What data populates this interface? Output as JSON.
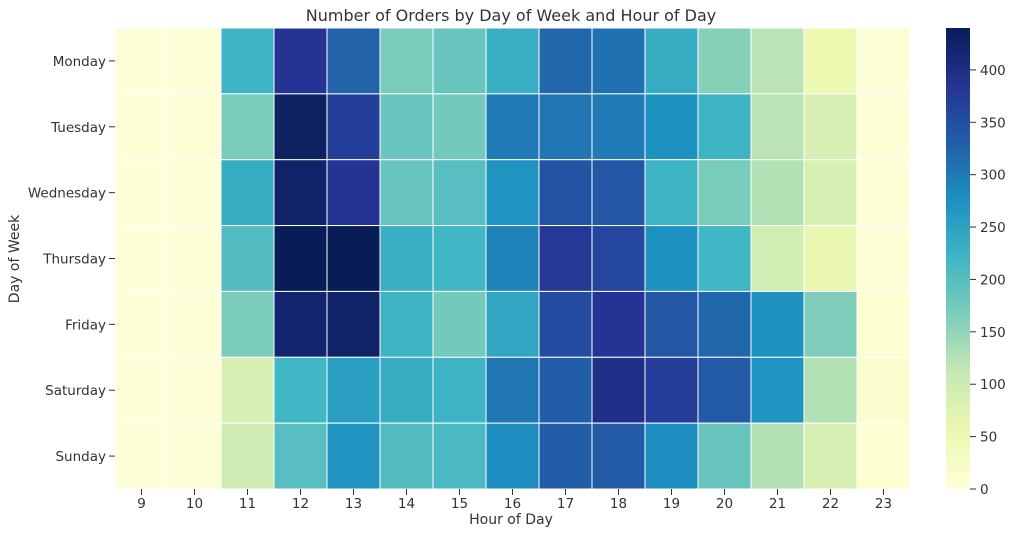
{
  "chart_data": {
    "type": "heatmap",
    "title": "Number of Orders by Day of Week and Hour of Day",
    "xlabel": "Hour of Day",
    "ylabel": "Day of Week",
    "x": [
      "9",
      "10",
      "11",
      "12",
      "13",
      "14",
      "15",
      "16",
      "17",
      "18",
      "19",
      "20",
      "21",
      "22",
      "23"
    ],
    "y": [
      "Monday",
      "Tuesday",
      "Wednesday",
      "Thursday",
      "Friday",
      "Saturday",
      "Sunday"
    ],
    "values": [
      [
        3,
        5,
        225,
        385,
        325,
        170,
        185,
        230,
        320,
        310,
        235,
        160,
        120,
        55,
        5
      ],
      [
        3,
        5,
        170,
        430,
        370,
        185,
        175,
        300,
        305,
        300,
        275,
        225,
        120,
        85,
        5
      ],
      [
        3,
        5,
        235,
        425,
        385,
        185,
        200,
        270,
        345,
        340,
        225,
        170,
        125,
        85,
        5
      ],
      [
        3,
        5,
        205,
        440,
        445,
        230,
        220,
        290,
        380,
        360,
        275,
        220,
        95,
        60,
        5
      ],
      [
        3,
        5,
        170,
        420,
        425,
        225,
        175,
        245,
        355,
        385,
        340,
        320,
        275,
        165,
        10
      ],
      [
        3,
        5,
        85,
        220,
        255,
        235,
        225,
        305,
        330,
        395,
        375,
        335,
        270,
        125,
        15
      ],
      [
        3,
        5,
        100,
        200,
        270,
        205,
        210,
        280,
        330,
        335,
        280,
        185,
        125,
        85,
        10
      ]
    ],
    "colorbar": {
      "min": 0,
      "max": 440,
      "ticks": [
        "0",
        "50",
        "100",
        "150",
        "200",
        "250",
        "300",
        "350",
        "400"
      ]
    },
    "colormap": "YlGnBu",
    "colormap_stops": [
      "#ffffd9",
      "#edf8b1",
      "#c7e9b4",
      "#7fcdbb",
      "#41b6c4",
      "#1d91c0",
      "#225ea8",
      "#253494",
      "#081d58"
    ],
    "cell_borders": true,
    "grid": false
  }
}
